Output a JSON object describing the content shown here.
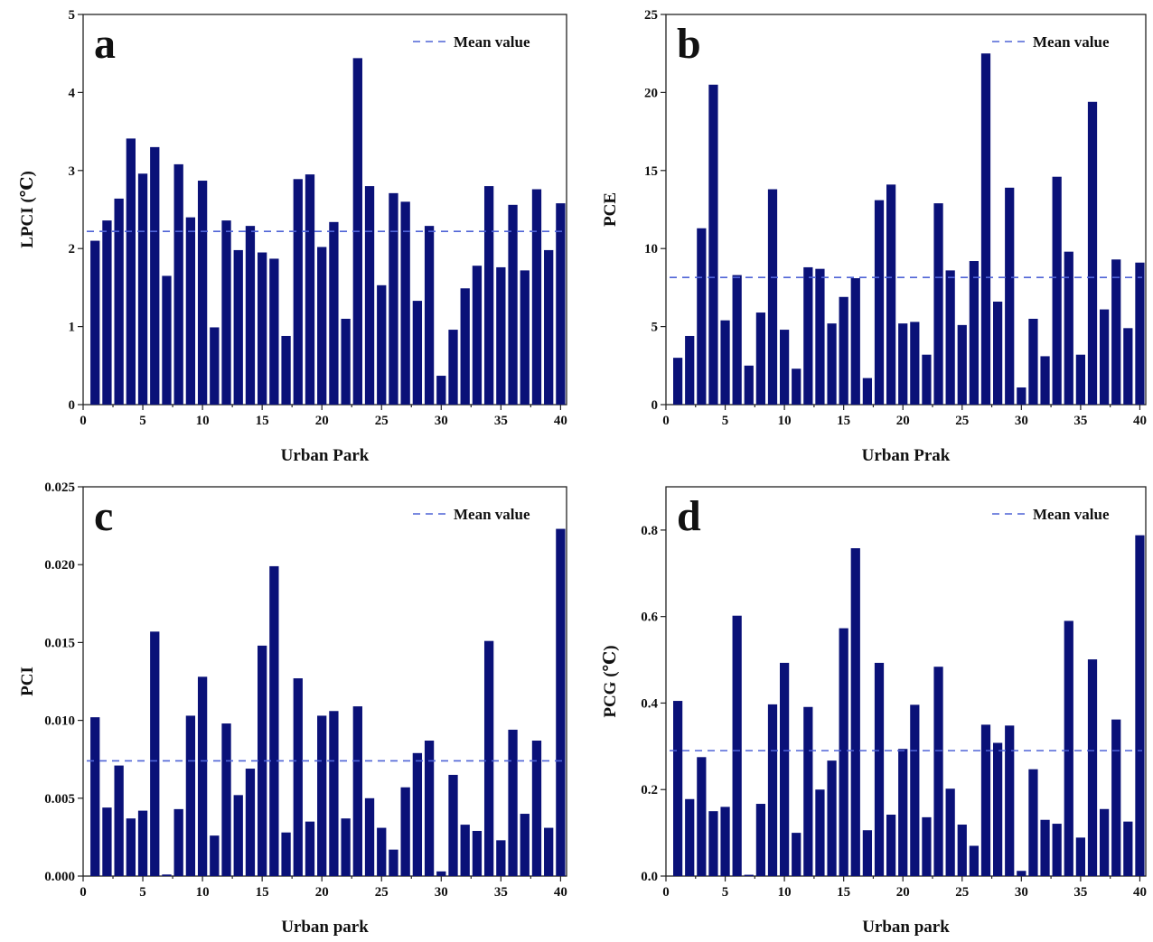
{
  "chart_data": [
    {
      "type": "bar",
      "panel_label": "a",
      "xlabel": "Urban Park",
      "ylabel": "LPCI (℃)",
      "xlim": [
        0,
        40.5
      ],
      "ylim": [
        0,
        5
      ],
      "xticks": [
        0,
        5,
        10,
        15,
        20,
        25,
        30,
        35,
        40
      ],
      "yticks": [
        0,
        1,
        2,
        3,
        4,
        5
      ],
      "ytick_labels": [
        "0",
        "1",
        "2",
        "3",
        "4",
        "5"
      ],
      "x": [
        1,
        2,
        3,
        4,
        5,
        6,
        7,
        8,
        9,
        10,
        11,
        12,
        13,
        14,
        15,
        16,
        17,
        18,
        19,
        20,
        21,
        22,
        23,
        24,
        25,
        26,
        27,
        28,
        29,
        30,
        31,
        32,
        33,
        34,
        35,
        36,
        37,
        38,
        39,
        40
      ],
      "values": [
        2.1,
        2.36,
        2.64,
        3.41,
        2.96,
        3.3,
        1.65,
        3.08,
        2.4,
        2.87,
        0.99,
        2.36,
        1.98,
        2.29,
        1.95,
        1.87,
        0.88,
        2.89,
        2.95,
        2.02,
        2.34,
        1.1,
        4.44,
        2.8,
        1.53,
        2.71,
        2.6,
        1.33,
        2.29,
        0.37,
        0.96,
        1.49,
        1.78,
        2.8,
        1.76,
        2.56,
        1.72,
        2.76,
        1.98,
        2.58
      ],
      "mean": 2.22,
      "legend": "Mean value",
      "legend_position": "top-right"
    },
    {
      "type": "bar",
      "panel_label": "b",
      "xlabel": "Urban Prak",
      "ylabel": "PCE",
      "xlim": [
        0,
        40.5
      ],
      "ylim": [
        0,
        25
      ],
      "xticks": [
        0,
        5,
        10,
        15,
        20,
        25,
        30,
        35,
        40
      ],
      "yticks": [
        0,
        5,
        10,
        15,
        20,
        25
      ],
      "ytick_labels": [
        "0",
        "5",
        "10",
        "15",
        "20",
        "25"
      ],
      "x": [
        1,
        2,
        3,
        4,
        5,
        6,
        7,
        8,
        9,
        10,
        11,
        12,
        13,
        14,
        15,
        16,
        17,
        18,
        19,
        20,
        21,
        22,
        23,
        24,
        25,
        26,
        27,
        28,
        29,
        30,
        31,
        32,
        33,
        34,
        35,
        36,
        37,
        38,
        39,
        40
      ],
      "values": [
        3.0,
        4.4,
        11.3,
        20.5,
        5.4,
        8.3,
        2.5,
        5.9,
        13.8,
        4.8,
        2.3,
        8.8,
        8.7,
        5.2,
        6.9,
        8.1,
        1.7,
        13.1,
        14.1,
        5.2,
        5.3,
        3.2,
        12.9,
        8.6,
        5.1,
        9.2,
        22.5,
        6.6,
        13.9,
        1.1,
        5.5,
        3.1,
        14.6,
        9.8,
        3.2,
        19.4,
        6.1,
        9.3,
        4.9,
        9.1
      ],
      "mean": 8.15,
      "legend": "Mean value",
      "legend_position": "top-right"
    },
    {
      "type": "bar",
      "panel_label": "c",
      "xlabel": "Urban park",
      "ylabel": "PCI",
      "xlim": [
        0,
        40.5
      ],
      "ylim": [
        0,
        0.025
      ],
      "xticks": [
        0,
        5,
        10,
        15,
        20,
        25,
        30,
        35,
        40
      ],
      "yticks": [
        0,
        0.005,
        0.01,
        0.015,
        0.02,
        0.025
      ],
      "ytick_labels": [
        "0.000",
        "0.005",
        "0.010",
        "0.015",
        "0.020",
        "0.025"
      ],
      "x": [
        1,
        2,
        3,
        4,
        5,
        6,
        7,
        8,
        9,
        10,
        11,
        12,
        13,
        14,
        15,
        16,
        17,
        18,
        19,
        20,
        21,
        22,
        23,
        24,
        25,
        26,
        27,
        28,
        29,
        30,
        31,
        32,
        33,
        34,
        35,
        36,
        37,
        38,
        39,
        40
      ],
      "values": [
        0.0102,
        0.0044,
        0.0071,
        0.0037,
        0.0042,
        0.0157,
        0.0001,
        0.0043,
        0.0103,
        0.0128,
        0.0026,
        0.0098,
        0.0052,
        0.0069,
        0.0148,
        0.0199,
        0.0028,
        0.0127,
        0.0035,
        0.0103,
        0.0106,
        0.0037,
        0.0109,
        0.005,
        0.0031,
        0.0017,
        0.0057,
        0.0079,
        0.0087,
        0.0003,
        0.0065,
        0.0033,
        0.0029,
        0.0151,
        0.0023,
        0.0094,
        0.004,
        0.0087,
        0.0031,
        0.0223
      ],
      "mean": 0.0074,
      "legend": "Mean value",
      "legend_position": "top-right"
    },
    {
      "type": "bar",
      "panel_label": "d",
      "xlabel": "Urban park",
      "ylabel": "PCG (℃)",
      "xlim": [
        0,
        40.5
      ],
      "ylim": [
        0,
        0.9
      ],
      "xticks": [
        0,
        5,
        10,
        15,
        20,
        25,
        30,
        35,
        40
      ],
      "yticks": [
        0,
        0.2,
        0.4,
        0.6,
        0.8
      ],
      "ytick_labels": [
        "0.0",
        "0.2",
        "0.4",
        "0.6",
        "0.8"
      ],
      "x": [
        1,
        2,
        3,
        4,
        5,
        6,
        7,
        8,
        9,
        10,
        11,
        12,
        13,
        14,
        15,
        16,
        17,
        18,
        19,
        20,
        21,
        22,
        23,
        24,
        25,
        26,
        27,
        28,
        29,
        30,
        31,
        32,
        33,
        34,
        35,
        36,
        37,
        38,
        39,
        40
      ],
      "values": [
        0.405,
        0.178,
        0.275,
        0.15,
        0.16,
        0.602,
        0.003,
        0.167,
        0.397,
        0.493,
        0.1,
        0.391,
        0.2,
        0.267,
        0.573,
        0.758,
        0.106,
        0.493,
        0.142,
        0.294,
        0.396,
        0.136,
        0.484,
        0.202,
        0.119,
        0.07,
        0.35,
        0.308,
        0.348,
        0.012,
        0.247,
        0.13,
        0.121,
        0.59,
        0.089,
        0.501,
        0.155,
        0.362,
        0.126,
        0.788
      ],
      "mean": 0.29,
      "legend": "Mean value",
      "legend_position": "top-right"
    }
  ]
}
